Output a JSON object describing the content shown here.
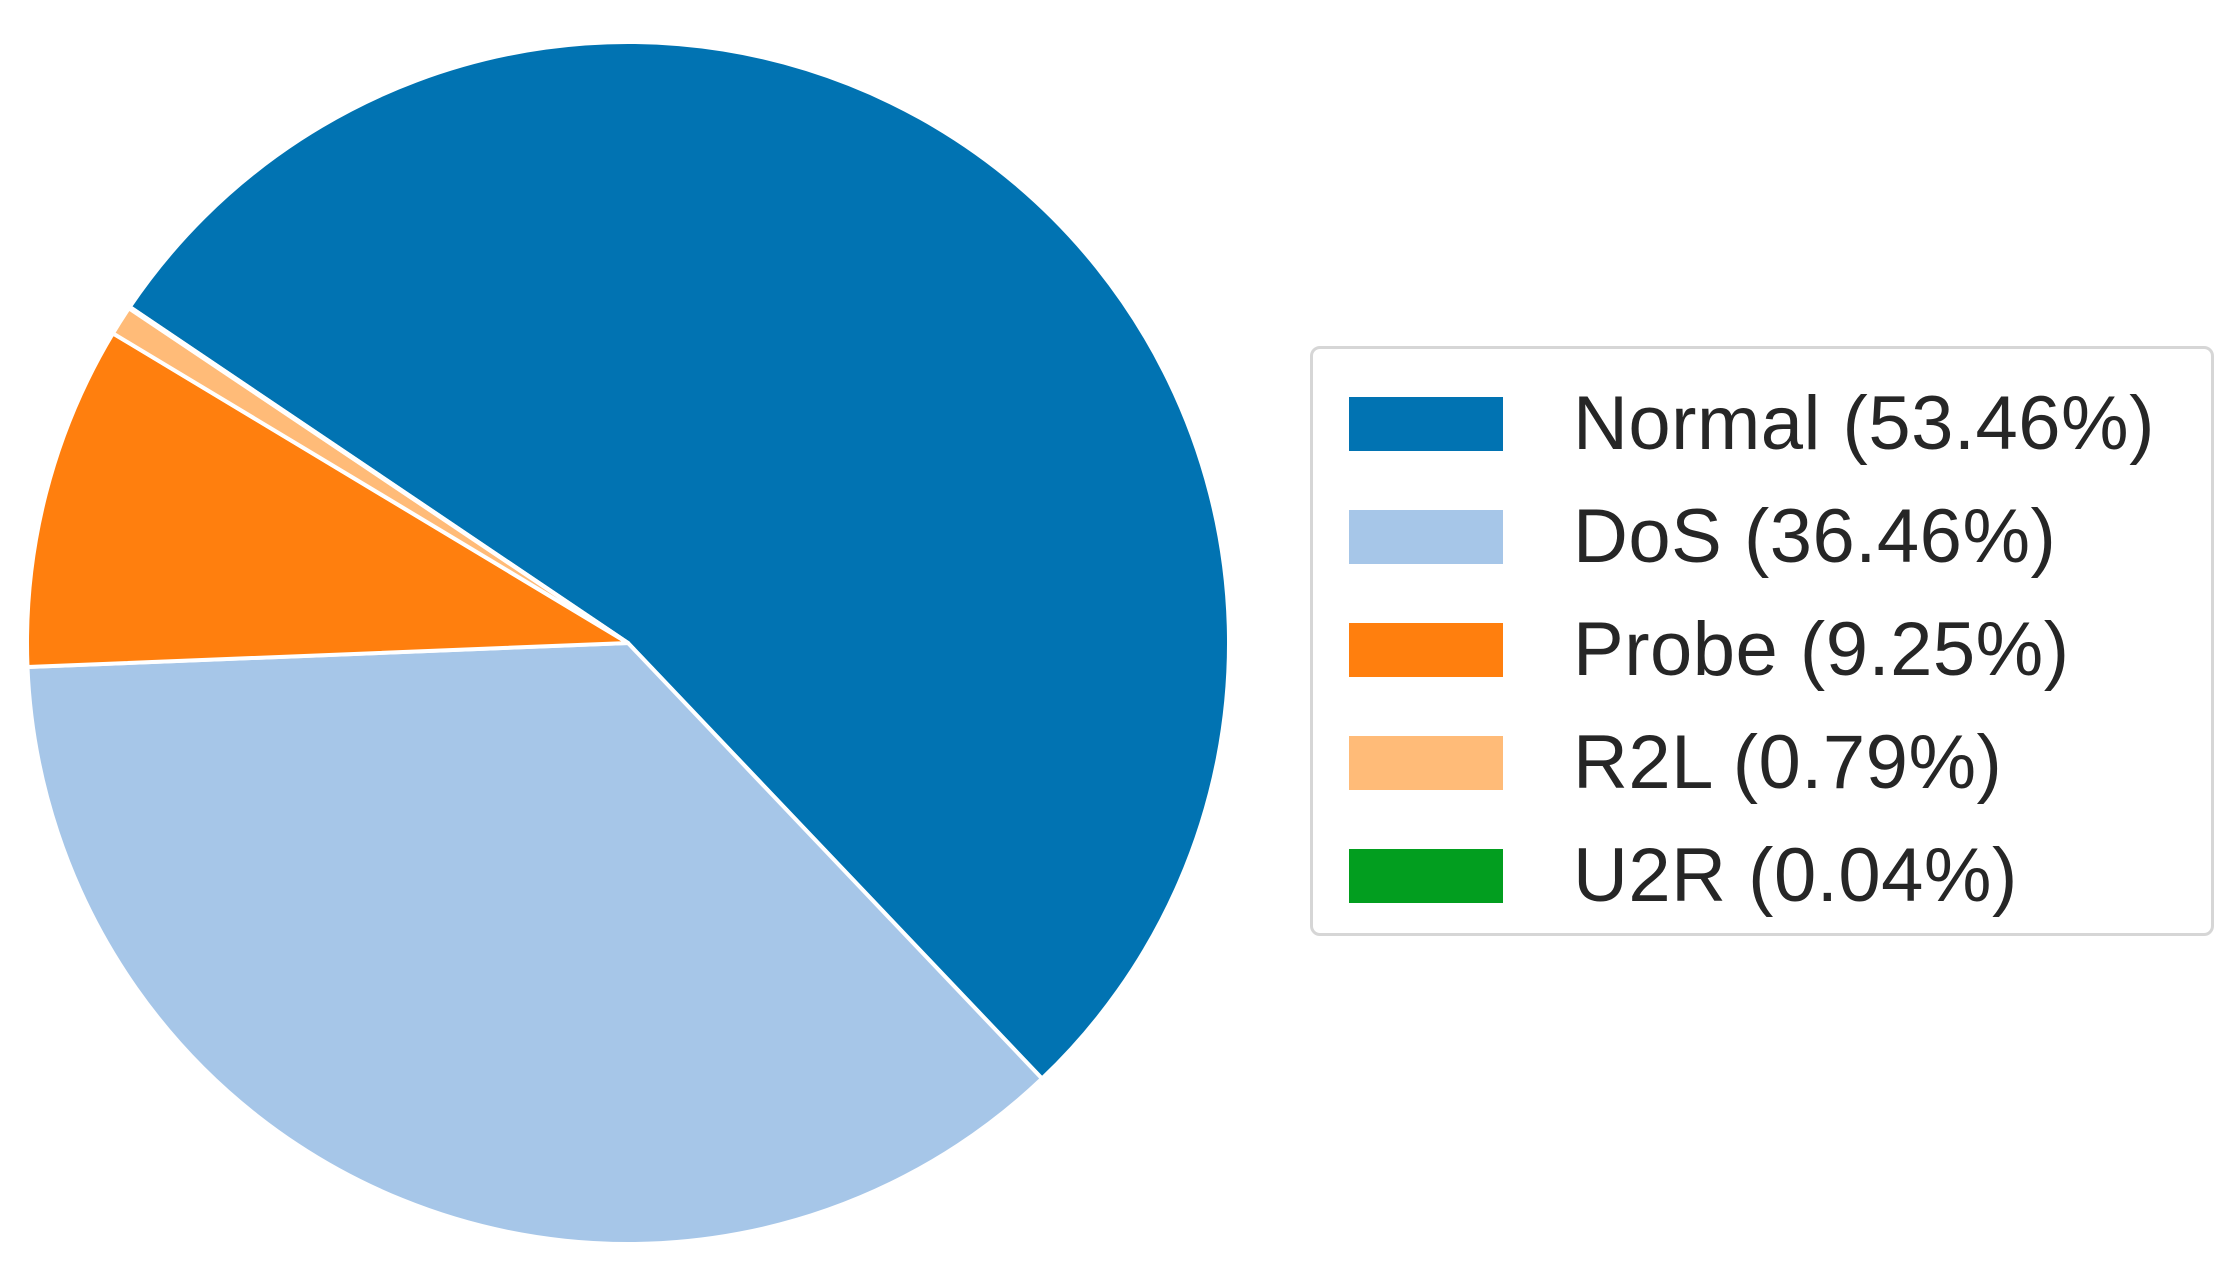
{
  "chart_data": {
    "type": "pie",
    "title": "",
    "slices": [
      {
        "label": "Normal (53.46%)",
        "value": 53.46,
        "color": "#0173b2"
      },
      {
        "label": "DoS (36.46%)",
        "value": 36.46,
        "color": "#a6c6e8"
      },
      {
        "label": "Probe (9.25%)",
        "value": 9.25,
        "color": "#ff7f0e"
      },
      {
        "label": "R2L (0.79%)",
        "value": 0.79,
        "color": "#ffbb78"
      },
      {
        "label": "U2R (0.04%)",
        "value": 0.04,
        "color": "#029e1f"
      }
    ],
    "legend_position": "right",
    "slice_separator_color": "#ffffff"
  }
}
